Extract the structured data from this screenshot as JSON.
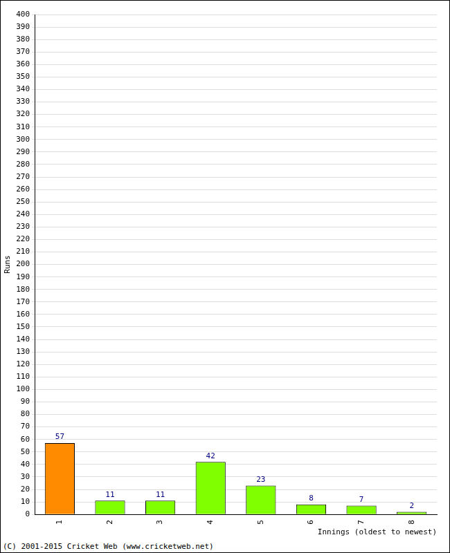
{
  "chart_data": {
    "type": "bar",
    "categories": [
      "1",
      "2",
      "3",
      "4",
      "5",
      "6",
      "7",
      "8"
    ],
    "values": [
      57,
      11,
      11,
      42,
      23,
      8,
      7,
      2
    ],
    "colors": [
      "#ff8c00",
      "#80ff00",
      "#80ff00",
      "#80ff00",
      "#80ff00",
      "#80ff00",
      "#80ff00",
      "#80ff00"
    ],
    "x_label": "Innings (oldest to newest)",
    "y_label": "Runs",
    "annotations": [
      "(C) 2001-2015 Cricket Web (www.cricketweb.net)"
    ],
    "ylim": [
      0,
      400
    ],
    "yticks": [
      0,
      10,
      20,
      30,
      40,
      50,
      60,
      70,
      80,
      90,
      100,
      110,
      120,
      130,
      140,
      150,
      160,
      170,
      180,
      190,
      200,
      210,
      220,
      230,
      240,
      250,
      260,
      270,
      280,
      290,
      300,
      310,
      320,
      330,
      340,
      350,
      360,
      370,
      380,
      390,
      400
    ],
    "grid": true,
    "data_labels": true
  }
}
